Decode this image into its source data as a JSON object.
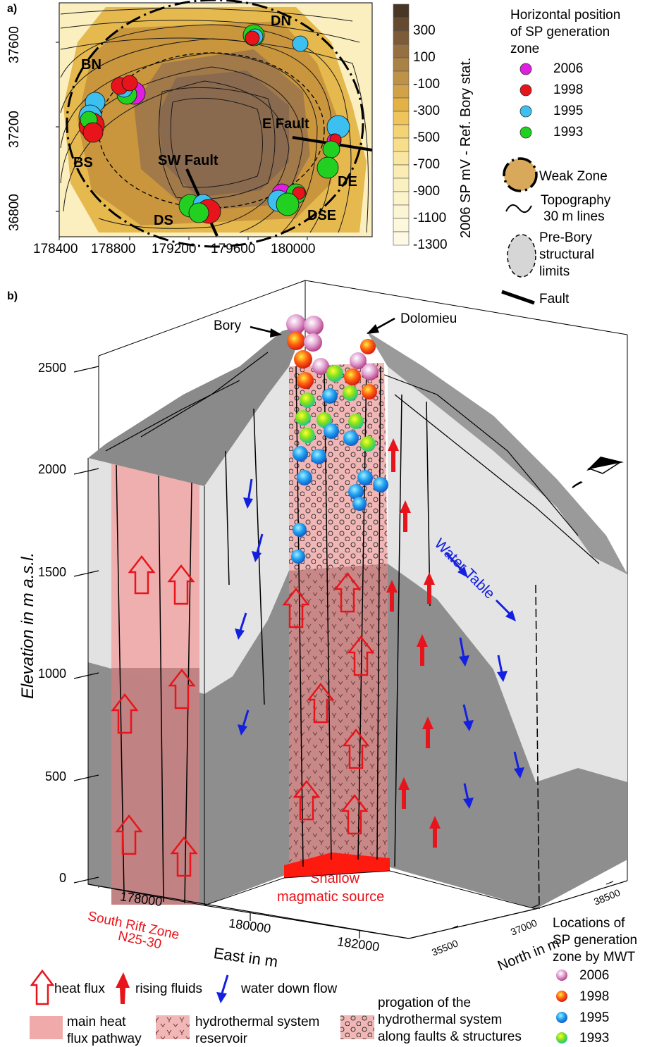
{
  "panel_a": {
    "label": "a)",
    "map_labels": {
      "dn": "DN",
      "bn": "BN",
      "bs": "BS",
      "ds": "DS",
      "dse": "DSE",
      "de": "DE",
      "e_fault": "E Fault",
      "sw_fault": "SW Fault"
    },
    "x_ticks": [
      "178400",
      "178800",
      "179200",
      "179600",
      "180000"
    ],
    "y_ticks": [
      "37600",
      "37200",
      "36800"
    ],
    "colorbar": {
      "title": "2006 SP mV - Ref. Bory stat.",
      "ticks": [
        "300",
        "100",
        "-100",
        "-300",
        "-500",
        "-700",
        "-900",
        "-1100",
        "-1300"
      ]
    },
    "legend": {
      "title": "Horizontal position of SP generation zone",
      "title_lines": [
        "Horizontal position",
        "of SP generation",
        "zone"
      ],
      "years": [
        {
          "year": "2006",
          "color": "#e01ee0"
        },
        {
          "year": "1998",
          "color": "#e8141b"
        },
        {
          "year": "1995",
          "color": "#3cc0f0"
        },
        {
          "year": "1993",
          "color": "#22d022"
        }
      ],
      "weak_zone": "Weak Zone",
      "topography": [
        "Topography",
        "30 m lines"
      ],
      "pre_bory": [
        "Pre-Bory",
        "structural",
        "limits"
      ],
      "fault": "Fault"
    }
  },
  "panel_b": {
    "label": "b)",
    "y_axis_label": "Elevation in m a.s.l.",
    "y_ticks": [
      "2500",
      "2000",
      "1500",
      "1000",
      "500",
      "0"
    ],
    "x_axis_label": "East in m",
    "x_ticks": [
      "178000",
      "180000",
      "182000"
    ],
    "n_axis_label": "North in m",
    "n_ticks": [
      "35500",
      "37000",
      "38500"
    ],
    "bory": "Bory",
    "dolomieu": "Dolomieu",
    "water_table": "Water Table",
    "shallow_source": [
      "Shallow",
      "magmatic source"
    ],
    "south_rift": [
      "South Rift Zone",
      "N25-30"
    ],
    "mwt_legend": {
      "title": [
        "Locations of",
        "SP generation",
        "zone by MWT"
      ],
      "years": [
        "2006",
        "1998",
        "1995",
        "1993"
      ]
    },
    "bottom_legend": {
      "heat_flux": "heat flux",
      "rising_fluids": "rising fluids",
      "water_down_flow": "water down flow",
      "main_heat": [
        "main heat",
        "flux pathway"
      ],
      "hydrothermal": [
        "hydrothermal system",
        "reservoir"
      ],
      "progation": [
        "progation of the",
        "hydrothermal system",
        "along faults & structures"
      ]
    }
  }
}
